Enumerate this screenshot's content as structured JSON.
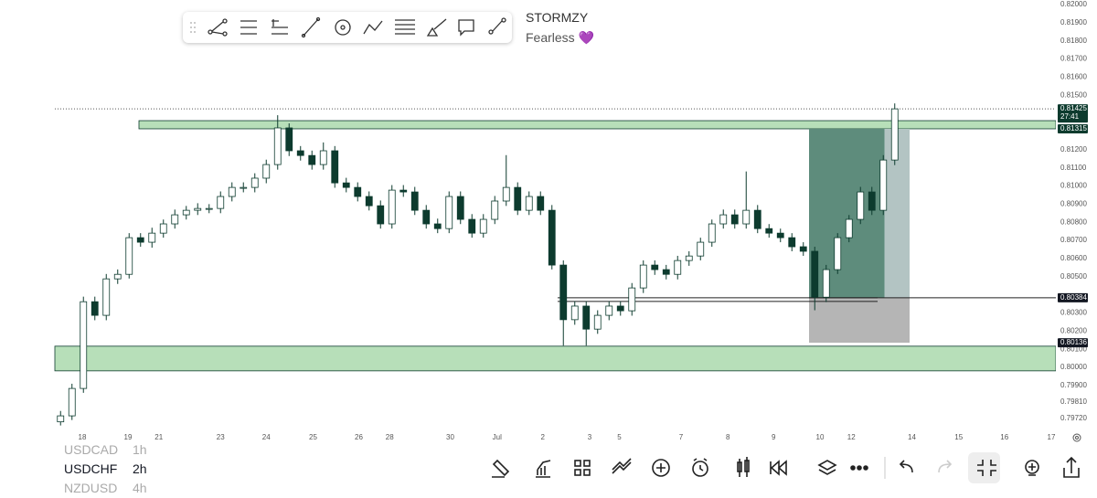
{
  "header": {
    "title": "STORMZY",
    "subtitle": "Fearless 💜"
  },
  "chart_data": {
    "type": "candlestick",
    "up_color": "#ffffff",
    "down_color": "#0d3b2e",
    "wick_color": "#0d3b2e",
    "open": [
      0.797,
      0.79733,
      0.79884,
      0.80362,
      0.80287,
      0.80488,
      0.80513,
      0.80715,
      0.8069,
      0.8074,
      0.80791,
      0.80841,
      0.80866,
      0.80876,
      0.80876,
      0.80942,
      0.80992,
      0.80992,
      0.81043,
      0.81118,
      0.8132,
      0.81194,
      0.81168,
      0.81118,
      0.81194,
      0.81017,
      0.80992,
      0.80942,
      0.80891,
      0.80791,
      0.80977,
      0.80967,
      0.80866,
      0.80791,
      0.80765,
      0.80942,
      0.80816,
      0.8074,
      0.80816,
      0.80917,
      0.80992,
      0.80866,
      0.80942,
      0.80866,
      0.80564,
      0.80263,
      0.80338,
      0.80211,
      0.80287,
      0.80338,
      0.80312,
      0.80438,
      0.80564,
      0.80539,
      0.80513,
      0.80589,
      0.80614,
      0.8069,
      0.80791,
      0.80841,
      0.80791,
      0.80866,
      0.80765,
      0.8074,
      0.80715,
      0.80665,
      0.8064,
      0.80387,
      0.80539,
      0.80715,
      0.80816,
      0.80967,
      0.80866,
      0.81143
    ],
    "high": [
      0.7976,
      0.7991,
      0.8039,
      0.8039,
      0.80515,
      0.8054,
      0.8074,
      0.8074,
      0.8077,
      0.80815,
      0.8087,
      0.8089,
      0.80905,
      0.809,
      0.8097,
      0.8102,
      0.8102,
      0.8107,
      0.81145,
      0.8139,
      0.81345,
      0.8122,
      0.81195,
      0.8124,
      0.8122,
      0.81045,
      0.8102,
      0.8097,
      0.8092,
      0.81005,
      0.81005,
      0.80995,
      0.80895,
      0.8082,
      0.8097,
      0.8097,
      0.80845,
      0.80845,
      0.80945,
      0.8117,
      0.8102,
      0.8097,
      0.8097,
      0.80895,
      0.8059,
      0.80365,
      0.80365,
      0.80315,
      0.80365,
      0.80365,
      0.80465,
      0.8059,
      0.8059,
      0.80565,
      0.80615,
      0.8064,
      0.80715,
      0.80815,
      0.8087,
      0.8087,
      0.8108,
      0.80895,
      0.8079,
      0.80765,
      0.8074,
      0.8069,
      0.80665,
      0.80565,
      0.8074,
      0.8084,
      0.80995,
      0.80995,
      0.8117,
      0.81455
    ],
    "low": [
      0.7968,
      0.7971,
      0.7986,
      0.8026,
      0.8026,
      0.8046,
      0.8049,
      0.80665,
      0.8066,
      0.80715,
      0.80765,
      0.80815,
      0.8084,
      0.8085,
      0.8085,
      0.80915,
      0.80965,
      0.80965,
      0.81015,
      0.8109,
      0.81165,
      0.8114,
      0.8109,
      0.8109,
      0.8099,
      0.80965,
      0.80915,
      0.80865,
      0.80765,
      0.80765,
      0.8094,
      0.8084,
      0.80765,
      0.8074,
      0.8074,
      0.8079,
      0.80715,
      0.80715,
      0.8079,
      0.8089,
      0.8084,
      0.8084,
      0.8084,
      0.8054,
      0.8012,
      0.80235,
      0.8012,
      0.80185,
      0.8026,
      0.80285,
      0.80285,
      0.8041,
      0.8051,
      0.80485,
      0.80485,
      0.8056,
      0.8059,
      0.80665,
      0.80765,
      0.80765,
      0.80765,
      0.8074,
      0.80715,
      0.8069,
      0.8064,
      0.80615,
      0.80315,
      0.8036,
      0.80515,
      0.8069,
      0.8079,
      0.8084,
      0.8084,
      0.81115
    ],
    "close": [
      0.79733,
      0.79884,
      0.80362,
      0.80287,
      0.80488,
      0.80513,
      0.80715,
      0.8069,
      0.8074,
      0.80791,
      0.80841,
      0.80866,
      0.80876,
      0.80876,
      0.80942,
      0.80992,
      0.80992,
      0.81043,
      0.81118,
      0.8132,
      0.81194,
      0.81168,
      0.81118,
      0.81194,
      0.81017,
      0.80992,
      0.80942,
      0.80891,
      0.80791,
      0.80977,
      0.80967,
      0.80866,
      0.80791,
      0.80765,
      0.80942,
      0.80816,
      0.8074,
      0.80816,
      0.80917,
      0.80992,
      0.80866,
      0.80942,
      0.80866,
      0.80564,
      0.80263,
      0.80338,
      0.80211,
      0.80287,
      0.80338,
      0.80312,
      0.80438,
      0.80564,
      0.80539,
      0.80513,
      0.80589,
      0.80614,
      0.8069,
      0.80791,
      0.80841,
      0.80791,
      0.80866,
      0.80765,
      0.8074,
      0.80715,
      0.80665,
      0.8064,
      0.80387,
      0.80539,
      0.80715,
      0.80816,
      0.80967,
      0.80866,
      0.81143,
      0.81425
    ],
    "xlim": [
      0,
      87.6
    ],
    "xticks": [
      {
        "value": 2.4,
        "label": "18"
      },
      {
        "value": 6.4,
        "label": "19"
      },
      {
        "value": 9.1,
        "label": "21"
      },
      {
        "value": 14.5,
        "label": "23"
      },
      {
        "value": 18.5,
        "label": "24"
      },
      {
        "value": 22.6,
        "label": "25"
      },
      {
        "value": 26.6,
        "label": "26"
      },
      {
        "value": 29.3,
        "label": "28"
      },
      {
        "value": 34.6,
        "label": "30"
      },
      {
        "value": 38.7,
        "label": "Jul"
      },
      {
        "value": 42.7,
        "label": "2"
      },
      {
        "value": 46.8,
        "label": "3"
      },
      {
        "value": 49.4,
        "label": "5"
      },
      {
        "value": 54.8,
        "label": "7"
      },
      {
        "value": 58.9,
        "label": "8"
      },
      {
        "value": 62.9,
        "label": "9"
      },
      {
        "value": 66.96,
        "label": "10"
      },
      {
        "value": 69.7,
        "label": "12"
      },
      {
        "value": 75.0,
        "label": "14"
      },
      {
        "value": 79.1,
        "label": "15"
      },
      {
        "value": 83.1,
        "label": "16"
      },
      {
        "value": 87.2,
        "label": "17"
      }
    ],
    "ylim": [
      0.79668,
      0.82025
    ],
    "yticks": [
      {
        "value": 0.82,
        "label": "0.82000"
      },
      {
        "value": 0.819,
        "label": "0.81900"
      },
      {
        "value": 0.818,
        "label": "0.81800"
      },
      {
        "value": 0.817,
        "label": "0.81700"
      },
      {
        "value": 0.816,
        "label": "0.81600"
      },
      {
        "value": 0.815,
        "label": "0.81500"
      },
      {
        "value": 0.812,
        "label": "0.81200"
      },
      {
        "value": 0.811,
        "label": "0.81100"
      },
      {
        "value": 0.81,
        "label": "0.81000"
      },
      {
        "value": 0.809,
        "label": "0.80900"
      },
      {
        "value": 0.808,
        "label": "0.80800"
      },
      {
        "value": 0.807,
        "label": "0.80700"
      },
      {
        "value": 0.806,
        "label": "0.80600"
      },
      {
        "value": 0.805,
        "label": "0.80500"
      },
      {
        "value": 0.803,
        "label": "0.80300"
      },
      {
        "value": 0.802,
        "label": "0.80200"
      },
      {
        "value": 0.801,
        "label": "0.80100"
      },
      {
        "value": 0.8,
        "label": "0.80000"
      },
      {
        "value": 0.799,
        "label": "0.79900"
      },
      {
        "value": 0.7981,
        "label": "0.79810"
      },
      {
        "value": 0.7972,
        "label": "0.79720"
      }
    ],
    "price_tags": [
      {
        "value": 0.81425,
        "timer": "27:41",
        "color": "#0d3b2e"
      },
      {
        "value": 0.81315,
        "color": "#0d3b2e"
      },
      {
        "value": 0.80384,
        "color": "#131722"
      },
      {
        "value": 0.80136,
        "color": "#131722"
      }
    ],
    "zones": [
      {
        "from": 0.81315,
        "to": 0.8136,
        "x_start": 7.36,
        "color": "#b7dfb9"
      },
      {
        "from": 0.79981,
        "to": 0.80117,
        "x_start": 0,
        "color": "#b7dfb9"
      }
    ],
    "level": {
      "value": 0.80384,
      "x_start": 44.0,
      "x_end": 72.0
    },
    "position": {
      "entry": 0.80384,
      "target": 0.81315,
      "stop": 0.80136,
      "x_start": 66.0,
      "x_end": 74.8,
      "filled_to": 72.6,
      "profit_color": "#b3c4c3",
      "profit_fill": "#5e8c7c",
      "loss_color": "#b5b5b5"
    }
  },
  "symbols": [
    {
      "symbol": "USDCAD",
      "interval": "1h"
    },
    {
      "symbol": "USDCHF",
      "interval": "2h"
    },
    {
      "symbol": "NZDUSD",
      "interval": "4h"
    }
  ]
}
